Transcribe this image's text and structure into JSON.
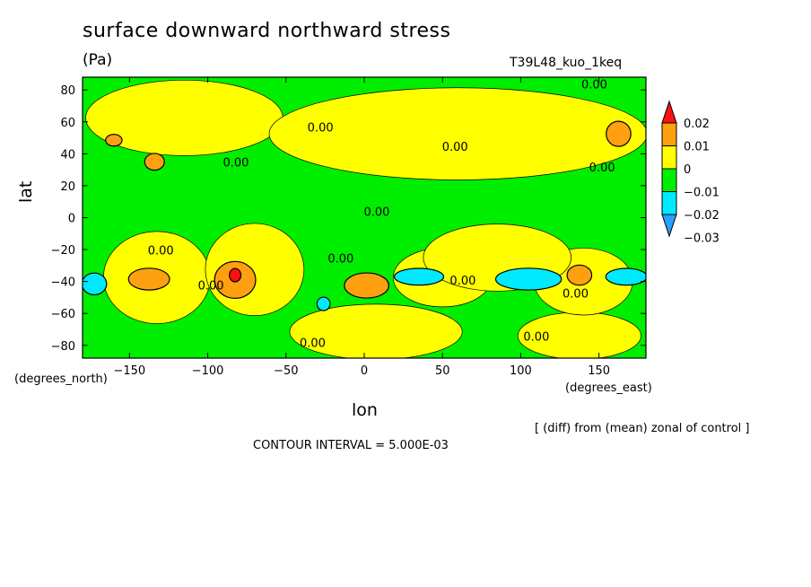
{
  "title": "surface downward northward stress",
  "units": "(Pa)",
  "run_id": "T39L48_kuo_1keq",
  "note": "[ (diff) from (mean) zonal of control ]",
  "contour_interval": "CONTOUR INTERVAL = 5.000E-03",
  "colors": {
    "lt_m003": "#2aa0ff",
    "m003_m002": "#00eaff",
    "m002_m001": "#00ee00",
    "m001_0": "#00ee00",
    "0_001": "#ffff00",
    "001_002": "#ffa010",
    "gt_002": "#ff1010"
  },
  "chart_data": {
    "type": "heatmap",
    "title": "surface downward northward stress",
    "units": "(Pa)",
    "xlabel": "lon",
    "ylabel": "lat",
    "x_units": "(degrees_east)",
    "y_units": "(degrees_north)",
    "xlim": [
      -180,
      180
    ],
    "ylim": [
      -88,
      88
    ],
    "x_ticks": [
      -150,
      -100,
      -50,
      0,
      50,
      100,
      150
    ],
    "y_ticks": [
      -80,
      -60,
      -40,
      -20,
      0,
      20,
      40,
      60,
      80
    ],
    "colorbar": {
      "levels": [
        -0.03,
        -0.02,
        -0.01,
        0,
        0.01,
        0.02
      ],
      "labels": [
        "-0.03",
        "-0.02",
        "-0.01",
        "0",
        "0.01",
        "0.02"
      ]
    },
    "contour_labels": [
      {
        "text": "0.00",
        "lon": 147,
        "lat": 81
      },
      {
        "text": "0.00",
        "lon": -28,
        "lat": 54
      },
      {
        "text": "0.00",
        "lon": -82,
        "lat": 32
      },
      {
        "text": "0.00",
        "lon": 58,
        "lat": 42
      },
      {
        "text": "0.00",
        "lon": 152,
        "lat": 29
      },
      {
        "text": "0.00",
        "lon": 8,
        "lat": 1
      },
      {
        "text": "0.00",
        "lon": -130,
        "lat": -23
      },
      {
        "text": "0.00",
        "lon": -15,
        "lat": -28
      },
      {
        "text": "0.00",
        "lon": -98,
        "lat": -45
      },
      {
        "text": "0.00",
        "lon": 63,
        "lat": -42
      },
      {
        "text": "0.00",
        "lon": 135,
        "lat": -50
      },
      {
        "text": "0.00",
        "lon": -33,
        "lat": -81
      },
      {
        "text": "0.00",
        "lon": 110,
        "lat": -77
      }
    ],
    "regions": [
      {
        "level": "0_001",
        "lon": [
          -175,
          -55
        ],
        "lat": [
          40,
          85
        ]
      },
      {
        "level": "0_001",
        "lon": [
          -55,
          175
        ],
        "lat": [
          25,
          80
        ]
      },
      {
        "level": "0_001",
        "lon": [
          -165,
          -100
        ],
        "lat": [
          -65,
          -10
        ]
      },
      {
        "level": "0_001",
        "lon": [
          -100,
          -40
        ],
        "lat": [
          -60,
          -5
        ]
      },
      {
        "level": "0_001",
        "lon": [
          -45,
          60
        ],
        "lat": [
          -88,
          -55
        ]
      },
      {
        "level": "0_001",
        "lon": [
          100,
          175
        ],
        "lat": [
          -88,
          -60
        ]
      },
      {
        "level": "0_001",
        "lon": [
          20,
          80
        ],
        "lat": [
          -55,
          -20
        ]
      },
      {
        "level": "0_001",
        "lon": [
          110,
          170
        ],
        "lat": [
          -60,
          -20
        ]
      },
      {
        "level": "0_001",
        "lon": [
          40,
          130
        ],
        "lat": [
          -45,
          -5
        ]
      },
      {
        "level": "001_002",
        "lon": [
          -150,
          -125
        ],
        "lat": [
          -45,
          -32
        ]
      },
      {
        "level": "001_002",
        "lon": [
          -95,
          -70
        ],
        "lat": [
          -50,
          -28
        ]
      },
      {
        "level": "001_002",
        "lon": [
          -12,
          15
        ],
        "lat": [
          -50,
          -35
        ]
      },
      {
        "level": "001_002",
        "lon": [
          130,
          145
        ],
        "lat": [
          -42,
          -30
        ]
      },
      {
        "level": "001_002",
        "lon": [
          155,
          170
        ],
        "lat": [
          45,
          60
        ]
      },
      {
        "level": "001_002",
        "lon": [
          -140,
          -128
        ],
        "lat": [
          30,
          40
        ]
      },
      {
        "level": "001_002",
        "lon": [
          -165,
          -155
        ],
        "lat": [
          45,
          52
        ]
      },
      {
        "level": "gt_002",
        "lon": [
          -86,
          -79
        ],
        "lat": [
          -40,
          -32
        ]
      },
      {
        "level": "m003_m002",
        "lon": [
          -180,
          -165
        ],
        "lat": [
          -48,
          -35
        ]
      },
      {
        "level": "m003_m002",
        "lon": [
          20,
          50
        ],
        "lat": [
          -42,
          -32
        ]
      },
      {
        "level": "m003_m002",
        "lon": [
          85,
          125
        ],
        "lat": [
          -45,
          -32
        ]
      },
      {
        "level": "m003_m002",
        "lon": [
          155,
          180
        ],
        "lat": [
          -42,
          -32
        ]
      },
      {
        "level": "m003_m002",
        "lon": [
          -30,
          -22
        ],
        "lat": [
          -58,
          -50
        ]
      }
    ]
  }
}
